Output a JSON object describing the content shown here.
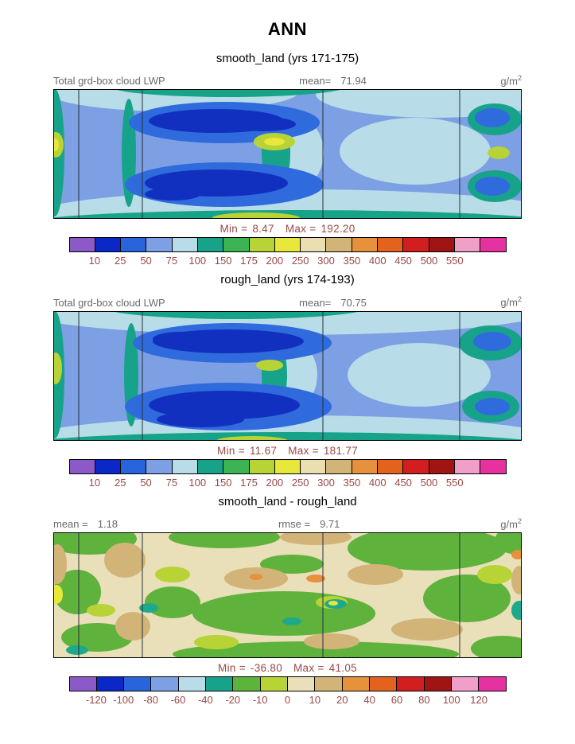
{
  "figure_title": "ANN",
  "unit": {
    "base": "g/m",
    "exp": "2"
  },
  "panels": [
    {
      "subtitle": "smooth_land (yrs 171-175)",
      "var_label": "Total grd-box cloud LWP",
      "mean_label": "mean=",
      "mean_value": "71.94",
      "min_label": "Min =",
      "min_value": "8.47",
      "max_label": "Max =",
      "max_value": "192.20",
      "colorbar": {
        "colors": [
          "#8c5ac8",
          "#0a28c8",
          "#2864dc",
          "#7d9fe3",
          "#b8dde8",
          "#17a389",
          "#3cb454",
          "#b8d335",
          "#e8e83a",
          "#eadfb0",
          "#d2b478",
          "#e6913c",
          "#e3631e",
          "#d21e1e",
          "#a01414",
          "#f0a0c8",
          "#e632a0"
        ],
        "ticks": [
          "10",
          "25",
          "50",
          "75",
          "100",
          "150",
          "175",
          "200",
          "250",
          "300",
          "350",
          "400",
          "450",
          "500",
          "550"
        ]
      }
    },
    {
      "subtitle": "rough_land (yrs 174-193)",
      "var_label": "Total grd-box cloud LWP",
      "mean_label": "mean=",
      "mean_value": "70.75",
      "min_label": "Min =",
      "min_value": "11.67",
      "max_label": "Max =",
      "max_value": "181.77",
      "colorbar": {
        "colors": [
          "#8c5ac8",
          "#0a28c8",
          "#2864dc",
          "#7d9fe3",
          "#b8dde8",
          "#17a389",
          "#3cb454",
          "#b8d335",
          "#e8e83a",
          "#eadfb0",
          "#d2b478",
          "#e6913c",
          "#e3631e",
          "#d21e1e",
          "#a01414",
          "#f0a0c8",
          "#e632a0"
        ],
        "ticks": [
          "10",
          "25",
          "50",
          "75",
          "100",
          "150",
          "175",
          "200",
          "250",
          "300",
          "350",
          "400",
          "450",
          "500",
          "550"
        ]
      }
    },
    {
      "subtitle": "smooth_land - rough_land",
      "mean_label": "mean =",
      "mean_value": "1.18",
      "rmse_label": "rmse =",
      "rmse_value": "9.71",
      "min_label": "Min =",
      "min_value": "-36.80",
      "max_label": "Max =",
      "max_value": "41.05",
      "colorbar": {
        "colors": [
          "#8c5ac8",
          "#0a28c8",
          "#2864dc",
          "#7d9fe3",
          "#b8dde8",
          "#17a389",
          "#5cb43c",
          "#b8d335",
          "#e9dfb9",
          "#d2b478",
          "#e6913c",
          "#e3631e",
          "#d21e1e",
          "#a01414",
          "#f0a0c8",
          "#e632a0"
        ],
        "ticks": [
          "-120",
          "-100",
          "-80",
          "-60",
          "-40",
          "-20",
          "-10",
          "0",
          "10",
          "20",
          "40",
          "60",
          "80",
          "100",
          "120"
        ]
      }
    }
  ],
  "chart_data": [
    {
      "type": "heatmap",
      "kind": "filled-contour latitude-longitude map",
      "title": "smooth_land (yrs 171-175)",
      "variable": "Total grd-box cloud LWP",
      "units": "g/m^2",
      "mean": 71.94,
      "min": 8.47,
      "max": 192.2,
      "contour_levels": [
        10,
        25,
        50,
        75,
        100,
        150,
        175,
        200,
        250,
        300,
        350,
        400,
        450,
        500,
        550
      ],
      "palette": [
        "#8c5ac8",
        "#0a28c8",
        "#2864dc",
        "#7d9fe3",
        "#b8dde8",
        "#17a389",
        "#3cb454",
        "#b8d335",
        "#e8e83a",
        "#eadfb0",
        "#d2b478",
        "#e6913c",
        "#e3631e",
        "#d21e1e",
        "#a01414",
        "#f0a0c8",
        "#e632a0"
      ],
      "description": "Mostly 50-100 g/m2 (cornflower/pale blue) with large 10-25 g/m2 minima (dark blue) in two zonal bands left-of-center and near the right edge; 100-150 teal bands along top, bottom, left edge and a central meridional strip; small 150-250 maxima (yellow-green/yellow) at the equatorial center and left edge; thin vertical continent-boundary lines."
    },
    {
      "type": "heatmap",
      "kind": "filled-contour latitude-longitude map",
      "title": "rough_land (yrs 174-193)",
      "variable": "Total grd-box cloud LWP",
      "units": "g/m^2",
      "mean": 70.75,
      "min": 11.67,
      "max": 181.77,
      "contour_levels": [
        10,
        25,
        50,
        75,
        100,
        150,
        175,
        200,
        250,
        300,
        350,
        400,
        450,
        500,
        550
      ],
      "palette": [
        "#8c5ac8",
        "#0a28c8",
        "#2864dc",
        "#7d9fe3",
        "#b8dde8",
        "#17a389",
        "#3cb454",
        "#b8d335",
        "#e8e83a",
        "#eadfb0",
        "#d2b478",
        "#e6913c",
        "#e3631e",
        "#d21e1e",
        "#a01414",
        "#f0a0c8",
        "#e632a0"
      ],
      "description": "Pattern very similar to smooth_land: dark-blue 10-25 g/m2 minima bands left-of-center and at right edge, teal 100-150 along edges and central strip, small green/yellow-green maxima at equatorial center and left edge."
    },
    {
      "type": "heatmap",
      "kind": "difference map (smooth_land minus rough_land)",
      "title": "smooth_land - rough_land",
      "units": "g/m^2",
      "mean": 1.18,
      "rmse": 9.71,
      "min": -36.8,
      "max": 41.05,
      "contour_levels": [
        -120,
        -100,
        -80,
        -60,
        -40,
        -20,
        -10,
        0,
        10,
        20,
        40,
        60,
        80,
        100,
        120
      ],
      "palette": [
        "#8c5ac8",
        "#0a28c8",
        "#2864dc",
        "#7d9fe3",
        "#b8dde8",
        "#17a389",
        "#5cb43c",
        "#b8d335",
        "#e9dfb9",
        "#d2b478",
        "#e6913c",
        "#e3631e",
        "#d21e1e",
        "#a01414",
        "#f0a0c8",
        "#e632a0"
      ],
      "description": "Differences mostly between -20 and +20 g/m2: cream (0 to 10) background with widespread green (-20 to -10) blobs, tan (10 to 20) patches, scattered yellow-green (-10 to 0), a few teal (-40 to -20) and orange (20 to 40) spots."
    }
  ]
}
